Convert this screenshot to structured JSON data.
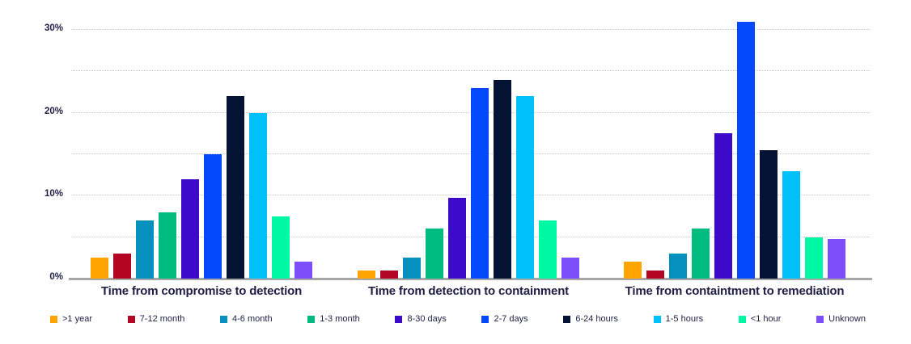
{
  "chart_data": {
    "type": "bar",
    "title": "",
    "xlabel": "",
    "ylabel": "",
    "grid": true,
    "legend_position": "bottom",
    "y_axis": {
      "min": 0,
      "max": 30,
      "gridline_step": 5,
      "grid_values": [
        5,
        10,
        15,
        20,
        25,
        30
      ],
      "ticks": [
        {
          "value": 0,
          "label": "0%"
        },
        {
          "value": 10,
          "label": "10%"
        },
        {
          "value": 20,
          "label": "20%"
        },
        {
          "value": 30,
          "label": "30%"
        }
      ]
    },
    "categories": [
      "Time from compromise to detection",
      "Time from detection to containment",
      "Time from containtment to remediation"
    ],
    "series": [
      {
        "name": ">1 year",
        "color": "#FFA400",
        "values": [
          2.5,
          1,
          2
        ]
      },
      {
        "name": "7-12 month",
        "color": "#B30624",
        "values": [
          3,
          1,
          1
        ]
      },
      {
        "name": "4-6 month",
        "color": "#0590BE",
        "values": [
          7,
          2.5,
          3
        ]
      },
      {
        "name": "1-3 month",
        "color": "#00BC7E",
        "values": [
          8,
          6,
          6
        ]
      },
      {
        "name": "8-30 days",
        "color": "#3C0AC8",
        "values": [
          12,
          9.7,
          17.5
        ]
      },
      {
        "name": "2-7 days",
        "color": "#0348FB",
        "values": [
          15,
          23,
          31
        ]
      },
      {
        "name": "6-24 hours",
        "color": "#041233",
        "values": [
          22,
          24,
          15.5
        ]
      },
      {
        "name": "1-5 hours",
        "color": "#00C0FA",
        "values": [
          20,
          22,
          13
        ]
      },
      {
        "name": "<1 hour",
        "color": "#00F7A4",
        "values": [
          7.5,
          7,
          5
        ]
      },
      {
        "name": "Unknown",
        "color": "#7C4FFA",
        "values": [
          2,
          2.5,
          4.8
        ]
      }
    ]
  }
}
